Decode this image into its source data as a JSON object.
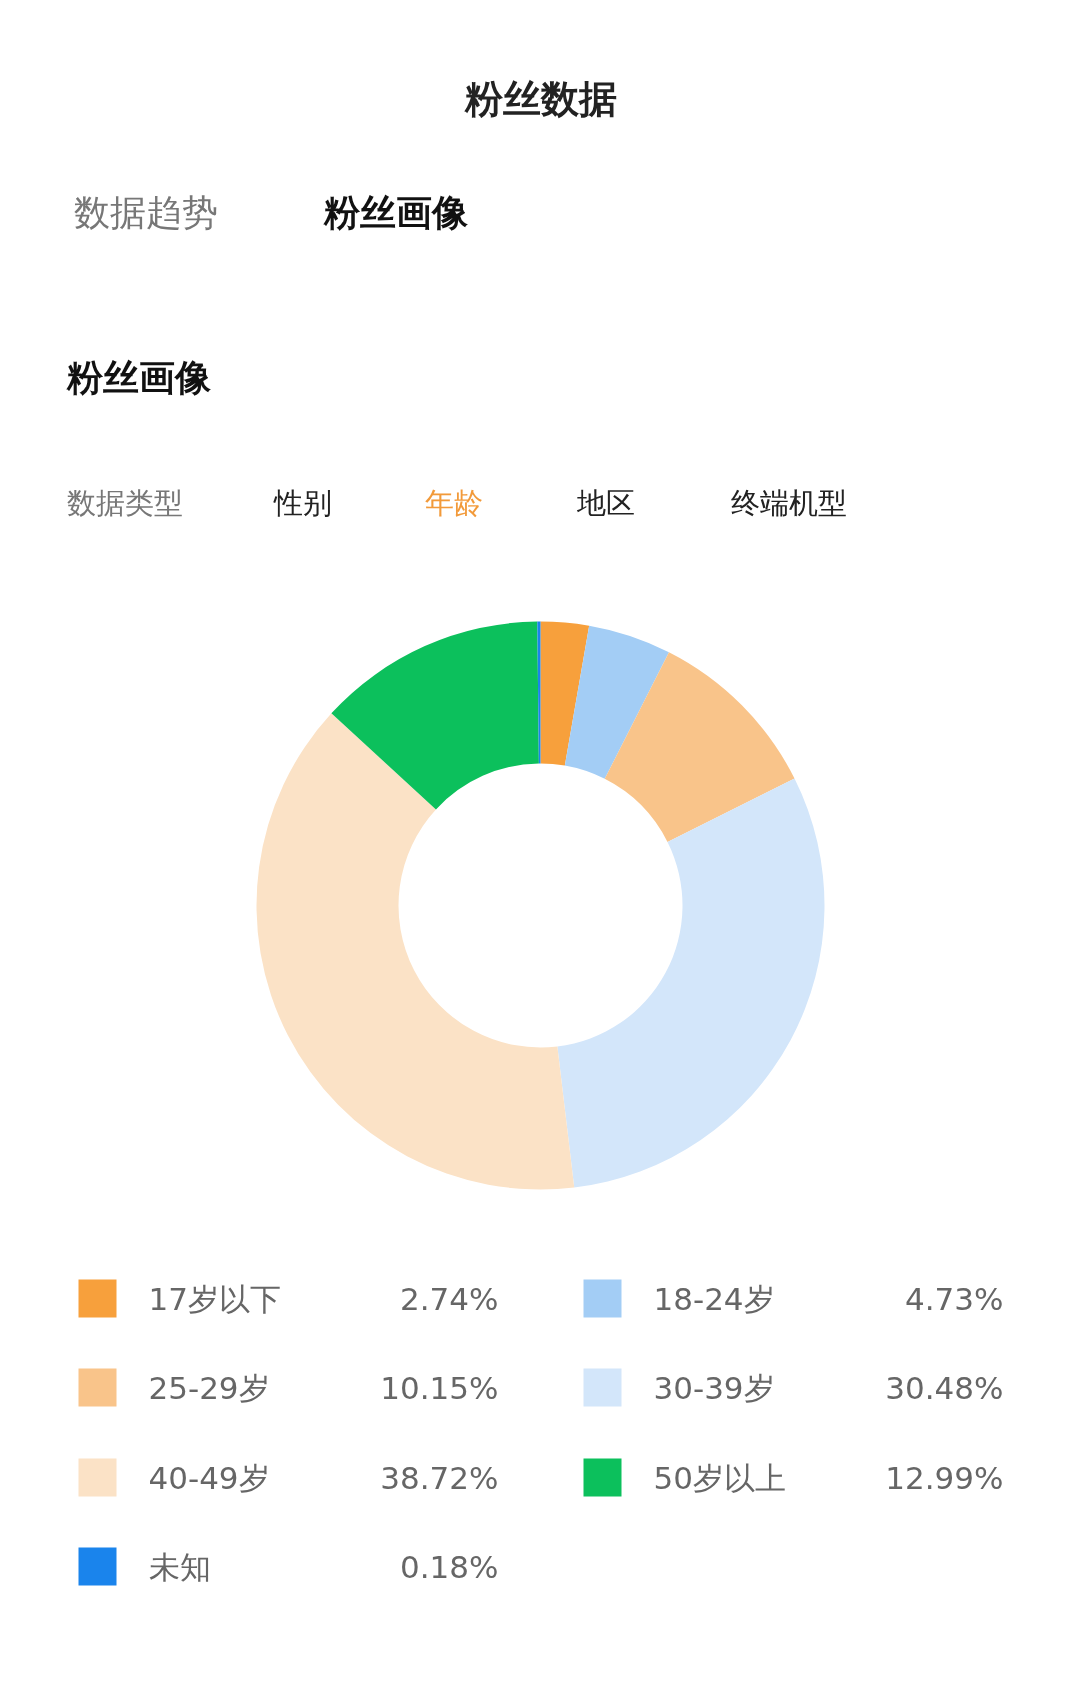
{
  "chart_data": {
    "type": "donut",
    "title": "粉丝数据",
    "annotations": [
      "数据趋势",
      "粉丝画像",
      "粉丝画像",
      "数据类型",
      "性别",
      "年龄",
      "地区",
      "终端机型"
    ],
    "categories": [
      "17岁以下",
      "18-24岁",
      "25-29岁",
      "30-39岁",
      "40-49岁",
      "50岁以上",
      "未知"
    ],
    "values": [
      2.74,
      4.73,
      10.15,
      30.48,
      38.72,
      12.99,
      0.18
    ],
    "value_labels": [
      "2.74%",
      "4.73%",
      "10.15%",
      "30.48%",
      "38.72%",
      "12.99%",
      "0.18%"
    ],
    "colors": [
      "#f7a03c",
      "#a3cdf5",
      "#f9c48a",
      "#d3e6fa",
      "#fbe2c6",
      "#0cc05c",
      "#1a84ec"
    ],
    "legend": "bottom"
  }
}
